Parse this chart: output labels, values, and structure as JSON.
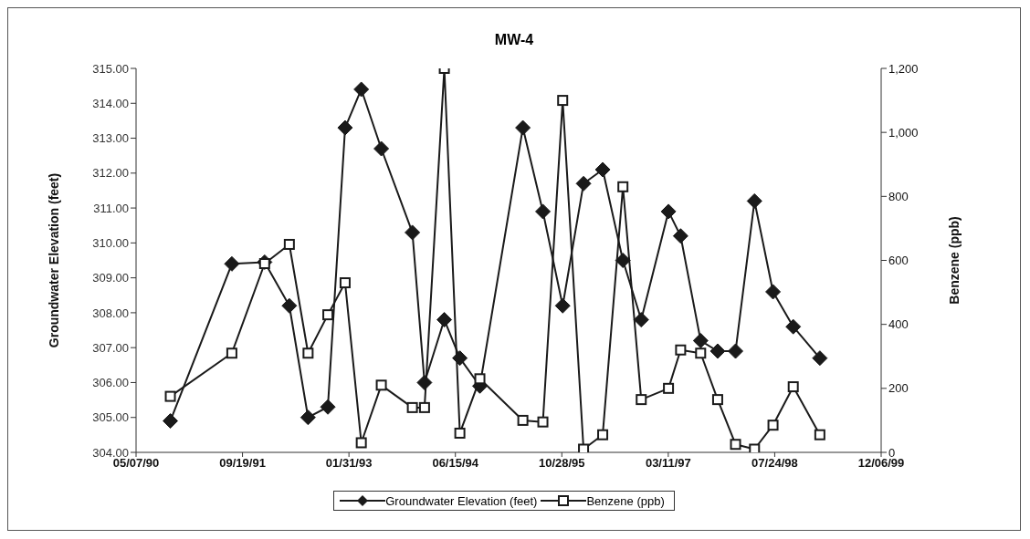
{
  "chart_data": {
    "type": "line",
    "title": "MW-4",
    "ylabel": "Groundwater Elevation (feet)",
    "y2label": "Benzene (ppb)",
    "x": [
      "1990-10-15",
      "1991-07-31",
      "1992-01-01",
      "1992-04-26",
      "1992-07-23",
      "1992-10-24",
      "1993-01-13",
      "1993-03-30",
      "1993-07-02",
      "1993-11-25",
      "1994-01-21",
      "1994-04-24",
      "1994-07-06",
      "1994-10-08",
      "1995-04-28",
      "1995-07-31",
      "1995-11-01",
      "1996-02-07",
      "1996-05-07",
      "1996-08-10",
      "1996-11-04",
      "1997-03-12",
      "1997-05-08",
      "1997-08-10",
      "1997-10-29",
      "1998-01-21",
      "1998-04-20",
      "1998-07-16",
      "1998-10-19",
      "1999-02-21"
    ],
    "series": [
      {
        "name": "Groundwater Elevation (feet)",
        "color": "#1a1a1a",
        "marker": "diamond",
        "values": [
          304.9,
          309.4,
          309.45,
          308.2,
          305.0,
          305.3,
          313.3,
          314.4,
          312.7,
          310.3,
          306.0,
          307.8,
          306.7,
          305.9,
          313.3,
          310.9,
          308.2,
          311.7,
          312.1,
          309.5,
          307.8,
          310.9,
          310.2,
          307.2,
          306.9,
          306.9,
          311.2,
          308.6,
          307.6,
          306.7
        ]
      },
      {
        "name": "Benzene (ppb)",
        "color": "#1a1a1a",
        "marker": "square",
        "axis": "y2",
        "values": [
          175,
          310,
          590,
          650,
          310,
          430,
          530,
          30,
          210,
          140,
          140,
          1200,
          60,
          230,
          100,
          95,
          1100,
          10,
          55,
          830,
          165,
          200,
          320,
          310,
          165,
          25,
          10,
          85,
          205,
          55
        ]
      }
    ],
    "xlim": [
      "1990-05-07",
      "1999-12-06"
    ],
    "xticks": [
      {
        "value": "1990-05-07",
        "label": "05/07/90"
      },
      {
        "value": "1991-09-19",
        "label": "09/19/91"
      },
      {
        "value": "1993-01-31",
        "label": "01/31/93"
      },
      {
        "value": "1994-06-15",
        "label": "06/15/94"
      },
      {
        "value": "1995-10-28",
        "label": "10/28/95"
      },
      {
        "value": "1997-03-11",
        "label": "03/11/97"
      },
      {
        "value": "1998-07-24",
        "label": "07/24/98"
      },
      {
        "value": "1999-12-06",
        "label": "12/06/99"
      }
    ],
    "ylim": [
      304,
      315
    ],
    "yticks": [
      {
        "value": 304,
        "label": "304.00"
      },
      {
        "value": 305,
        "label": "305.00"
      },
      {
        "value": 306,
        "label": "306.00"
      },
      {
        "value": 307,
        "label": "307.00"
      },
      {
        "value": 308,
        "label": "308.00"
      },
      {
        "value": 309,
        "label": "309.00"
      },
      {
        "value": 310,
        "label": "310.00"
      },
      {
        "value": 311,
        "label": "311.00"
      },
      {
        "value": 312,
        "label": "312.00"
      },
      {
        "value": 313,
        "label": "313.00"
      },
      {
        "value": 314,
        "label": "314.00"
      },
      {
        "value": 315,
        "label": "315.00"
      }
    ],
    "y2lim": [
      0,
      1200
    ],
    "y2ticks": [
      0,
      200,
      400,
      600,
      800,
      {
        "value": 1000,
        "label": "1,000"
      },
      {
        "value": 1200,
        "label": "1,200"
      }
    ],
    "grid": false,
    "legend": "bottom",
    "line_style": "solid"
  }
}
